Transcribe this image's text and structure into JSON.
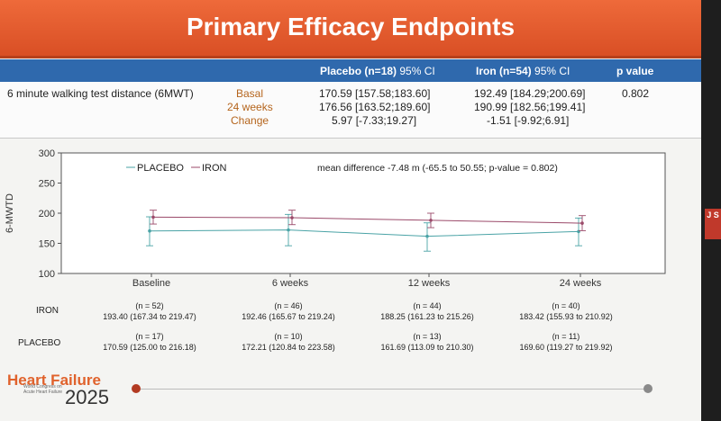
{
  "slide": {
    "title": "Primary Efficacy Endpoints"
  },
  "table": {
    "headers": {
      "placebo": "Placebo (n=18)",
      "placebo_ci": "95% CI",
      "iron": "Iron (n=54)",
      "iron_ci": "95% CI",
      "pvalue": "p value"
    },
    "outcome": "6 minute walking test distance (6MWT)",
    "rows": [
      {
        "label": "Basal",
        "placebo": "170.59 [157.58;183.60]",
        "iron": "192.49 [184.29;200.69]"
      },
      {
        "label": "24 weeks",
        "placebo": "176.56 [163.52;189.60]",
        "iron": "190.99 [182.56;199.41]"
      },
      {
        "label": "Change",
        "placebo": "5.97 [-7.33;19.27]",
        "iron": "-1.51 [-9.92;6.91]"
      }
    ],
    "pvalue": "0.802"
  },
  "chart_data": {
    "type": "line",
    "ylabel": "6-MWTD",
    "xlabel": "",
    "ylim": [
      100,
      300
    ],
    "yticks": [
      "100",
      "150",
      "200",
      "250",
      "300"
    ],
    "categories": [
      "Baseline",
      "6 weeks",
      "12  weeks",
      "24 weeks"
    ],
    "legend": [
      "PLACEBO",
      "IRON"
    ],
    "legend_position": "top-left",
    "annotation": "mean difference -7.48 m (-65.5 to 50.55; p-value = 0.802)",
    "grid": false,
    "series": [
      {
        "name": "PLACEBO",
        "color": "#4aa3a6",
        "values": [
          170.59,
          172.21,
          161.69,
          169.6
        ],
        "lower": [
          146,
          146,
          137,
          146
        ],
        "upper": [
          194,
          198,
          184,
          192
        ]
      },
      {
        "name": "IRON",
        "color": "#9b4a6a",
        "values": [
          193.4,
          192.46,
          188.25,
          183.42
        ],
        "lower": [
          182,
          181,
          176,
          171
        ],
        "upper": [
          205,
          205,
          200,
          196
        ]
      }
    ]
  },
  "stats": {
    "iron_label": "IRON",
    "placebo_label": "PLACEBO",
    "iron": [
      {
        "n": "(n = 52)",
        "value": "193.40 (167.34 to 219.47)"
      },
      {
        "n": "(n = 46)",
        "value": "192.46 (165.67 to 219.24)"
      },
      {
        "n": "(n = 44)",
        "value": "188.25 (161.23 to 215.26)"
      },
      {
        "n": "(n = 40)",
        "value": "183.42 (155.93 to 210.92)"
      }
    ],
    "placebo": [
      {
        "n": "(n = 17)",
        "value": "170.59 (125.00 to 216.18)"
      },
      {
        "n": "(n = 10)",
        "value": "172.21 (120.84 to 223.58)"
      },
      {
        "n": "(n = 13)",
        "value": "161.69 (113.09 to 210.30)"
      },
      {
        "n": "(n = 11)",
        "value": "169.60 (119.27 to 219.92)"
      }
    ]
  },
  "footer": {
    "logo_text": "Heart Failure",
    "logo_year": "2025",
    "logo_sub": "World Congress on Acute Heart Failure",
    "accent": "#c0392b"
  },
  "side": {
    "badge": "J S"
  }
}
